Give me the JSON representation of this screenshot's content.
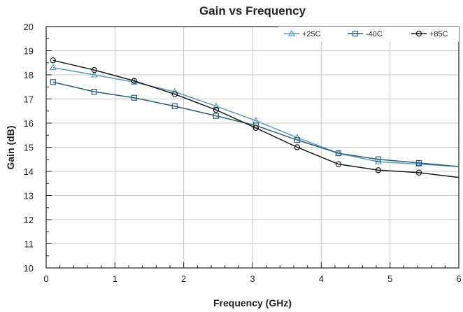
{
  "chart_data": {
    "type": "line",
    "title": "Gain vs Frequency",
    "xlabel": "Frequency (GHz)",
    "ylabel": "Gain (dB)",
    "xlim": [
      0,
      6
    ],
    "ylim": [
      10,
      20
    ],
    "xticks": [
      0,
      1,
      2,
      3,
      4,
      5,
      6
    ],
    "yticks": [
      10,
      11,
      12,
      13,
      14,
      15,
      16,
      17,
      18,
      19,
      20
    ],
    "grid": true,
    "legend_position": "top-right",
    "series": [
      {
        "name": "+25C",
        "color": "#5b9bbf",
        "marker": "triangle",
        "x": [
          0.1,
          0.7,
          1.28,
          1.87,
          2.47,
          3.05,
          3.65,
          4.25,
          4.83,
          5.42,
          6.0
        ],
        "y": [
          18.3,
          18.0,
          17.7,
          17.3,
          16.7,
          16.1,
          15.4,
          14.75,
          14.4,
          14.3,
          14.2
        ]
      },
      {
        "name": "-40C",
        "color": "#2a5f7a",
        "marker": "square",
        "x": [
          0.1,
          0.7,
          1.28,
          1.87,
          2.47,
          3.05,
          3.65,
          4.25,
          4.83,
          5.42,
          6.0
        ],
        "y": [
          17.7,
          17.3,
          17.05,
          16.7,
          16.3,
          15.9,
          15.3,
          14.75,
          14.5,
          14.35,
          14.2
        ]
      },
      {
        "name": "+85C",
        "color": "#1a1a1a",
        "marker": "circle",
        "x": [
          0.1,
          0.7,
          1.28,
          1.87,
          2.47,
          3.05,
          3.65,
          4.25,
          4.83,
          5.42,
          6.0
        ],
        "y": [
          18.6,
          18.2,
          17.75,
          17.2,
          16.55,
          15.8,
          15.0,
          14.3,
          14.05,
          13.95,
          13.75
        ]
      }
    ]
  }
}
